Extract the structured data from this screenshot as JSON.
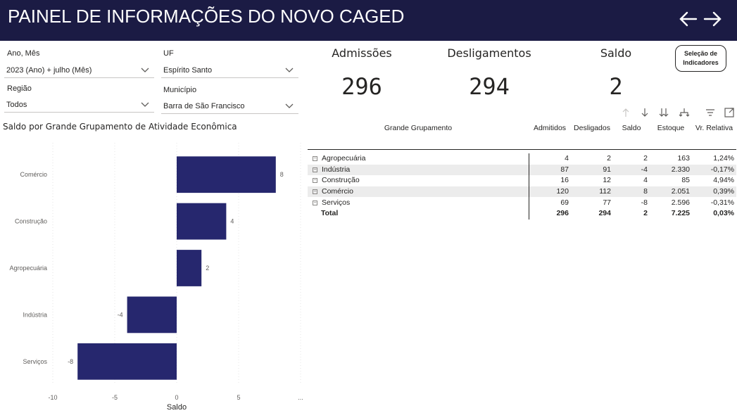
{
  "header": {
    "title": "PAINEL DE INFORMAÇÕES DO NOVO CAGED"
  },
  "filters": {
    "ano_mes": {
      "label": "Ano, Mês",
      "value": "2023 (Ano) + julho (Mês)"
    },
    "uf": {
      "label": "UF",
      "value": "Espírito Santo"
    },
    "regiao": {
      "label": "Região",
      "value": "Todos"
    },
    "municipio": {
      "label": "Município",
      "value": "Barra de São Francisco"
    }
  },
  "kpis": {
    "admissoes": {
      "label": "Admissões",
      "value": "296"
    },
    "desligamentos": {
      "label": "Desligamentos",
      "value": "294"
    },
    "saldo": {
      "label": "Saldo",
      "value": "2"
    }
  },
  "selection_button": {
    "line1": "Seleção de",
    "line2": "Indicadores"
  },
  "toolbar_icons": [
    "arrow-up-icon",
    "arrow-down-icon",
    "drill-down-icon",
    "expand-hierarchy-icon",
    "filter-icon",
    "focus-mode-icon"
  ],
  "colors": {
    "header_bg": "#1b1b44",
    "bar": "#26276e"
  },
  "matrix": {
    "headers": [
      "Grande Grupamento",
      "Admitidos",
      "Desligados",
      "Saldo",
      "Estoque",
      "Vr. Relativa"
    ],
    "rows": [
      [
        "Agropecuária",
        "4",
        "2",
        "2",
        "163",
        "1,24%"
      ],
      [
        "Indústria",
        "87",
        "91",
        "-4",
        "2.330",
        "-0,17%"
      ],
      [
        "Construção",
        "16",
        "12",
        "4",
        "85",
        "4,94%"
      ],
      [
        "Comércio",
        "120",
        "112",
        "8",
        "2.051",
        "0,39%"
      ],
      [
        "Serviços",
        "69",
        "77",
        "-8",
        "2.596",
        "-0,31%"
      ]
    ],
    "total": [
      "Total",
      "296",
      "294",
      "2",
      "7.225",
      "0,03%"
    ]
  },
  "chart_data": {
    "type": "bar",
    "orientation": "horizontal",
    "title": "Saldo por Grande Grupamento de Atividade Econômica",
    "xlabel": "Saldo",
    "ylabel": "",
    "categories": [
      "Comércio",
      "Construção",
      "Agropecuária",
      "Indústria",
      "Serviços"
    ],
    "values": [
      8,
      4,
      2,
      -4,
      -8
    ],
    "xlim": [
      -10,
      10
    ],
    "xticks": [
      "-10",
      "-5",
      "0",
      "5",
      "..."
    ],
    "grid": true,
    "data_labels": true
  }
}
